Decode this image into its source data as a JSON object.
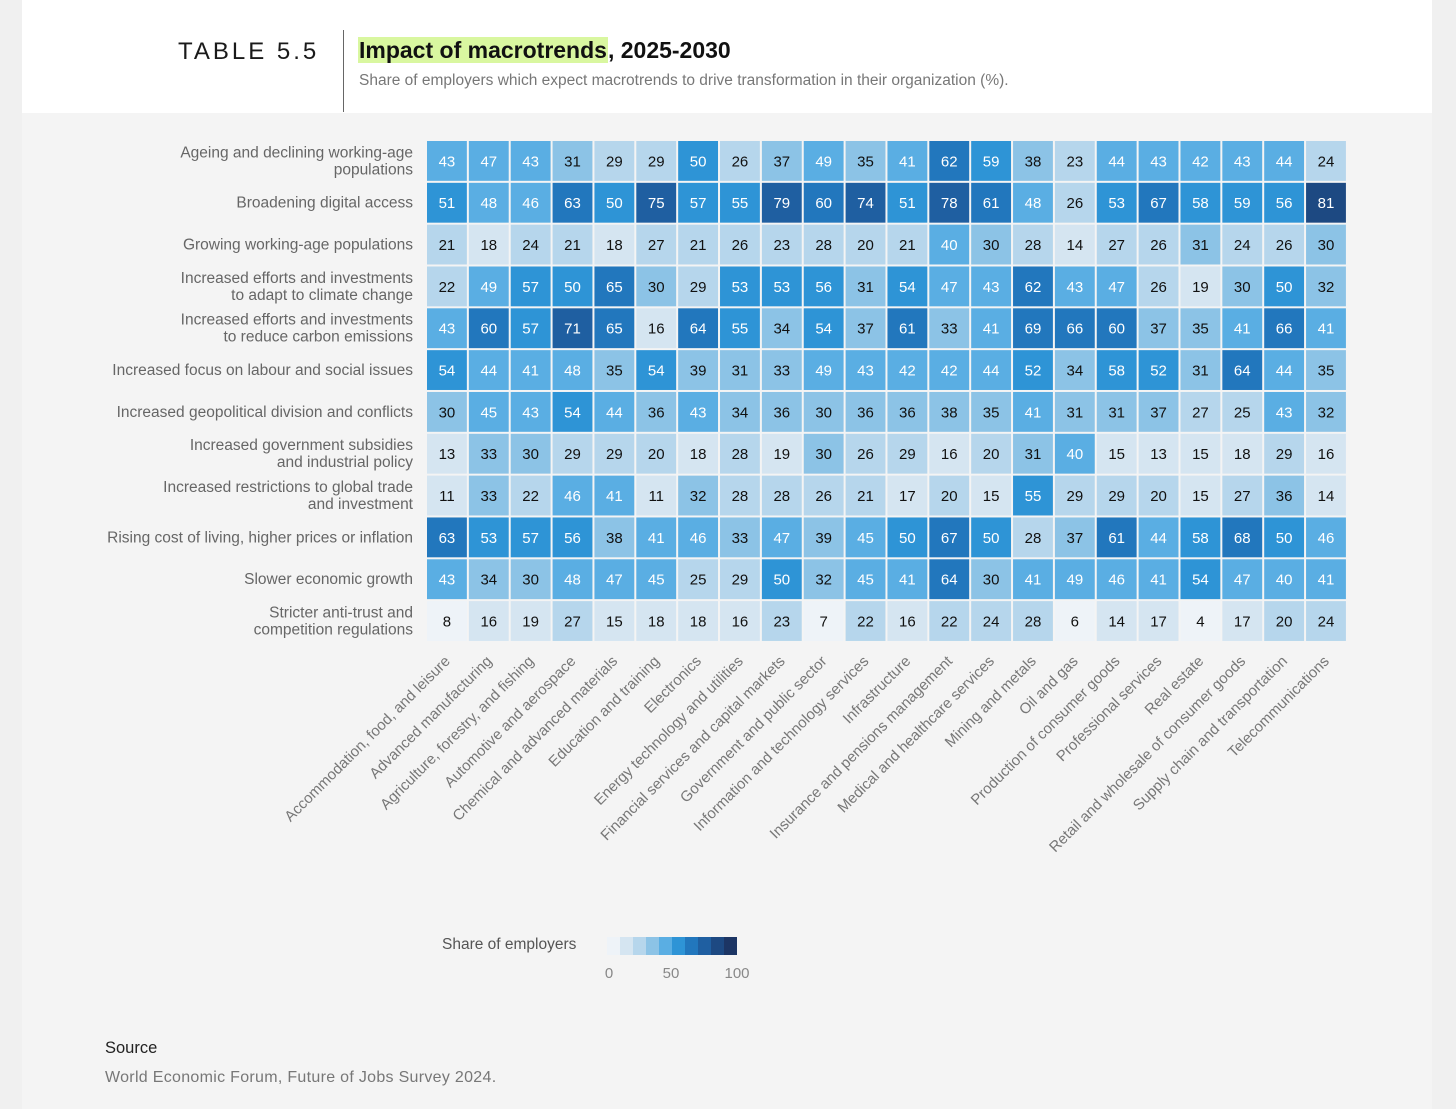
{
  "header": {
    "table_number": "TABLE 5.5",
    "title_highlight": "Impact of macrotrends",
    "title_rest": ", 2025-2030",
    "subtitle": "Share of employers which expect macrotrends to drive transformation in their organization (%)."
  },
  "legend": {
    "title": "Share of employers",
    "tick_labels": [
      "0",
      "50",
      "100"
    ],
    "colors": [
      "#eef3f8",
      "#d5e5f1",
      "#b6d6ec",
      "#8cc3e6",
      "#5aaee3",
      "#2e94d6",
      "#2277bd",
      "#1f5fa1",
      "#1d4982",
      "#1c3564"
    ]
  },
  "source": {
    "label": "Source",
    "text": "World Economic Forum, Future of Jobs Survey 2024."
  },
  "chart_data": {
    "type": "heatmap",
    "rows": [
      [
        "Ageing and declining working-age",
        "populations"
      ],
      [
        "Broadening digital access"
      ],
      [
        "Growing working-age populations"
      ],
      [
        "Increased efforts and investments",
        "to adapt to climate change"
      ],
      [
        "Increased efforts and investments",
        "to reduce carbon emissions"
      ],
      [
        "Increased focus on labour and social issues"
      ],
      [
        "Increased geopolitical division and conflicts"
      ],
      [
        "Increased government subsidies",
        "and industrial policy"
      ],
      [
        "Increased restrictions to global trade",
        "and investment"
      ],
      [
        "Rising cost of living, higher prices or inflation"
      ],
      [
        "Slower economic growth"
      ],
      [
        "Stricter anti-trust and",
        "competition regulations"
      ]
    ],
    "columns": [
      "Accommodation, food, and leisure",
      "Advanced manufacturing",
      "Agriculture, forestry, and fishing",
      "Automotive and aerospace",
      "Chemical and advanced materials",
      "Education and training",
      "Electronics",
      "Energy technology and utilities",
      "Financial services and capital markets",
      "Government and public sector",
      "Information and technology services",
      "Infrastructure",
      "Insurance and pensions management",
      "Medical and healthcare services",
      "Mining and metals",
      "Oil and gas",
      "Production of consumer goods",
      "Professional services",
      "Real estate",
      "Retail and wholesale of consumer goods",
      "Supply chain and transportation",
      "Telecommunications"
    ],
    "values": [
      [
        43,
        47,
        43,
        31,
        29,
        29,
        50,
        26,
        37,
        49,
        35,
        41,
        62,
        59,
        38,
        23,
        44,
        43,
        42,
        43,
        44,
        24
      ],
      [
        51,
        48,
        46,
        63,
        50,
        75,
        57,
        55,
        79,
        60,
        74,
        51,
        78,
        61,
        48,
        26,
        53,
        67,
        58,
        59,
        56,
        81
      ],
      [
        21,
        18,
        24,
        21,
        18,
        27,
        21,
        26,
        23,
        28,
        20,
        21,
        40,
        30,
        28,
        14,
        27,
        26,
        31,
        24,
        26,
        30
      ],
      [
        22,
        49,
        57,
        50,
        65,
        30,
        29,
        53,
        53,
        56,
        31,
        54,
        47,
        43,
        62,
        43,
        47,
        26,
        19,
        30,
        50,
        32
      ],
      [
        43,
        60,
        57,
        71,
        65,
        16,
        64,
        55,
        34,
        54,
        37,
        61,
        33,
        41,
        69,
        66,
        60,
        37,
        35,
        41,
        66,
        41
      ],
      [
        54,
        44,
        41,
        48,
        35,
        54,
        39,
        31,
        33,
        49,
        43,
        42,
        42,
        44,
        52,
        34,
        58,
        52,
        31,
        64,
        44,
        35
      ],
      [
        30,
        45,
        43,
        54,
        44,
        36,
        43,
        34,
        36,
        30,
        36,
        36,
        38,
        35,
        41,
        31,
        31,
        37,
        27,
        25,
        43,
        32
      ],
      [
        13,
        33,
        30,
        29,
        29,
        20,
        18,
        28,
        19,
        30,
        26,
        29,
        16,
        20,
        31,
        40,
        15,
        13,
        15,
        18,
        29,
        16
      ],
      [
        11,
        33,
        22,
        46,
        41,
        11,
        32,
        28,
        28,
        26,
        21,
        17,
        20,
        15,
        55,
        29,
        29,
        20,
        15,
        27,
        36,
        14
      ],
      [
        63,
        53,
        57,
        56,
        38,
        41,
        46,
        33,
        47,
        39,
        45,
        50,
        67,
        50,
        28,
        37,
        61,
        44,
        58,
        68,
        50,
        46
      ],
      [
        43,
        34,
        30,
        48,
        47,
        45,
        25,
        29,
        50,
        32,
        45,
        41,
        64,
        30,
        41,
        49,
        46,
        41,
        54,
        47,
        40,
        41
      ],
      [
        8,
        16,
        19,
        27,
        15,
        18,
        18,
        16,
        23,
        7,
        22,
        16,
        22,
        24,
        28,
        6,
        14,
        17,
        4,
        17,
        20,
        24
      ]
    ],
    "value_range": [
      0,
      100
    ],
    "unit": "%"
  }
}
